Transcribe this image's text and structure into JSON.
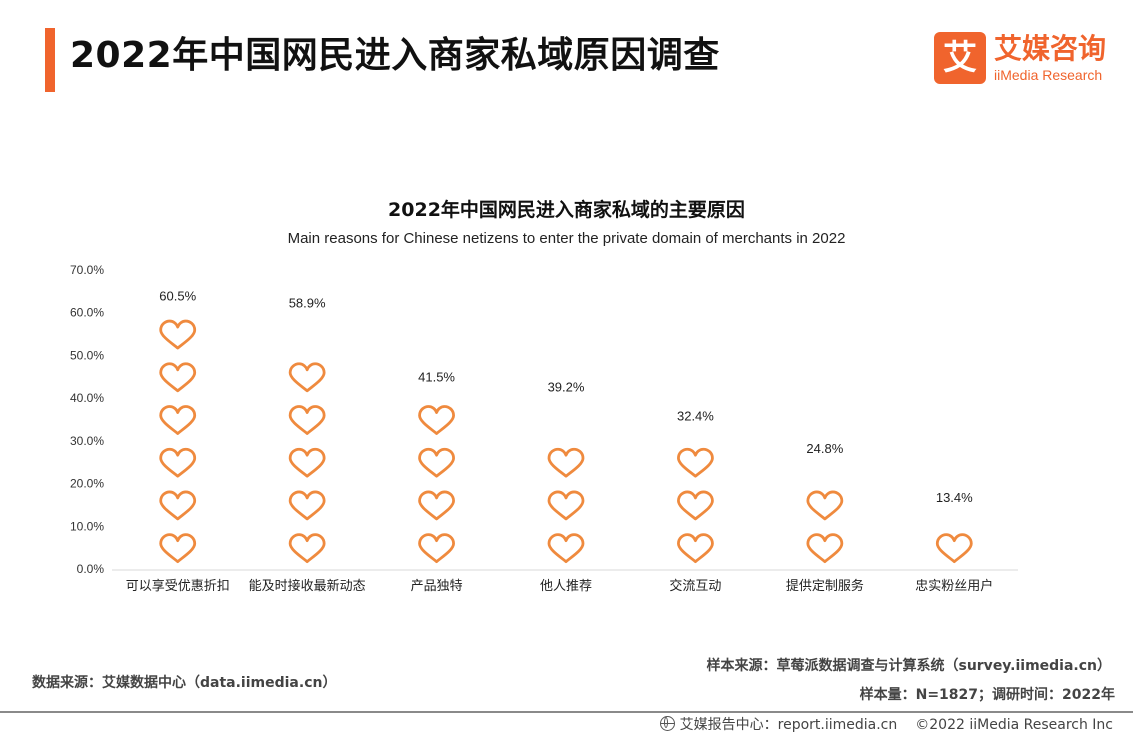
{
  "header": {
    "title": "2022年中国网民进入商家私域原因调查"
  },
  "logo": {
    "mark": "艾",
    "name_cn": "艾媒咨询",
    "name_en": "iiMedia Research"
  },
  "chart_data": {
    "type": "bar",
    "title": "2022年中国网民进入商家私域的主要原因",
    "subtitle": "Main reasons for Chinese netizens to enter the private domain of merchants in 2022",
    "categories": [
      "可以享受优惠折扣",
      "能及时接收最新动态",
      "产品独特",
      "他人推荐",
      "交流互动",
      "提供定制服务",
      "忠实粉丝用户"
    ],
    "values": [
      60.5,
      58.9,
      41.5,
      39.2,
      32.4,
      24.8,
      13.4
    ],
    "data_labels": [
      "60.5%",
      "58.9%",
      "41.5%",
      "39.2%",
      "32.4%",
      "24.8%",
      "13.4%"
    ],
    "ylim": [
      0,
      70
    ],
    "yticks": [
      0,
      10,
      20,
      30,
      40,
      50,
      60,
      70
    ],
    "ytick_labels": [
      "0.0%",
      "10.0%",
      "20.0%",
      "30.0%",
      "40.0%",
      "50.0%",
      "60.0%",
      "70.0%"
    ],
    "mark_style": "stacked-heart-icons",
    "color": "#ef8a3e"
  },
  "footer": {
    "source_left": "数据来源：艾媒数据中心（data.iimedia.cn）",
    "sample_source": "样本来源：草莓派数据调查与计算系统（survey.iimedia.cn）",
    "sample_info": "样本量：N=1827；调研时间：2022年",
    "report_center": "艾媒报告中心：report.iimedia.cn",
    "copyright": "©2022  iiMedia Research  Inc"
  }
}
